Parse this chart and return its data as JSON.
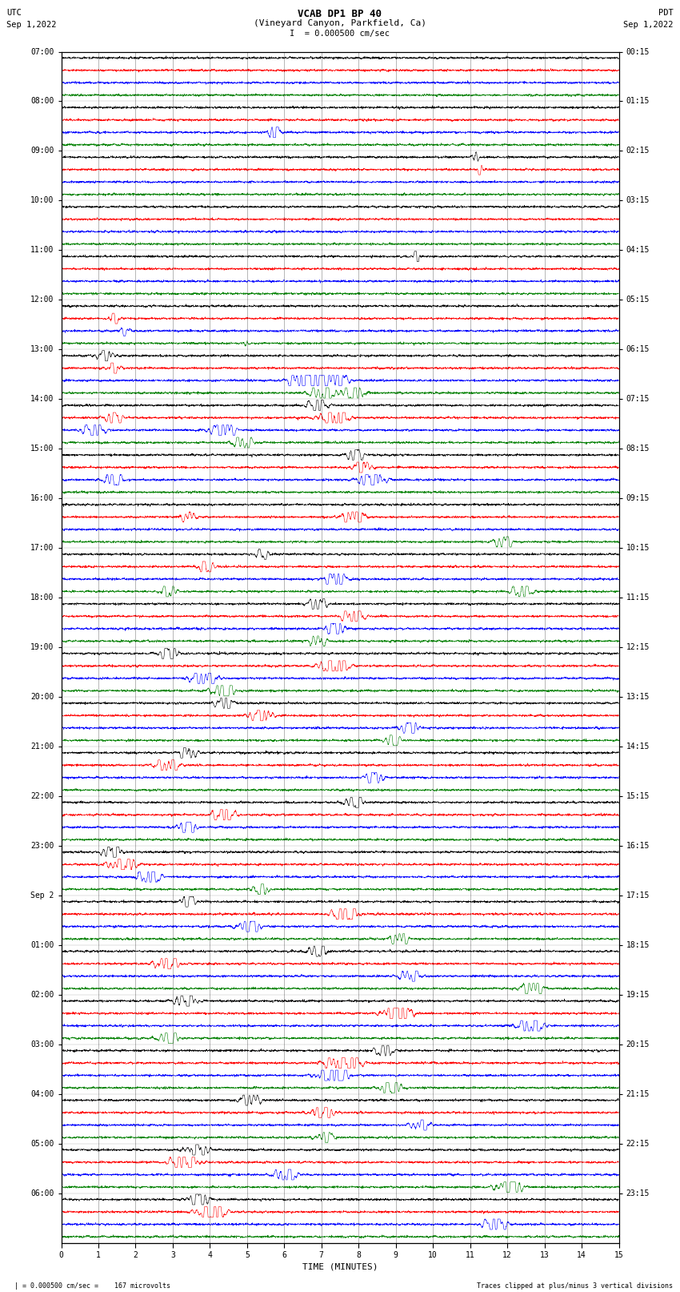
{
  "title_line1": "VCAB DP1 BP 40",
  "title_line2": "(Vineyard Canyon, Parkfield, Ca)",
  "scale_label": "I  = 0.000500 cm/sec",
  "left_label": "UTC",
  "left_date": "Sep 1,2022",
  "right_label": "PDT",
  "right_date": "Sep 1,2022",
  "xlabel": "TIME (MINUTES)",
  "bottom_left": "  | = 0.000500 cm/sec =    167 microvolts",
  "bottom_right": "Traces clipped at plus/minus 3 vertical divisions",
  "utc_times": [
    "07:00",
    "08:00",
    "09:00",
    "10:00",
    "11:00",
    "12:00",
    "13:00",
    "14:00",
    "15:00",
    "16:00",
    "17:00",
    "18:00",
    "19:00",
    "20:00",
    "21:00",
    "22:00",
    "23:00",
    "Sep 2",
    "01:00",
    "02:00",
    "03:00",
    "04:00",
    "05:00",
    "06:00"
  ],
  "pdt_times": [
    "00:15",
    "01:15",
    "02:15",
    "03:15",
    "04:15",
    "05:15",
    "06:15",
    "07:15",
    "08:15",
    "09:15",
    "10:15",
    "11:15",
    "12:15",
    "13:15",
    "14:15",
    "15:15",
    "16:15",
    "17:15",
    "18:15",
    "19:15",
    "20:15",
    "21:15",
    "22:15",
    "23:15"
  ],
  "num_hour_groups": 24,
  "traces_per_group": 4,
  "colors": [
    "black",
    "red",
    "blue",
    "green"
  ],
  "bg_color": "#ffffff",
  "num_minutes": 15,
  "seed": 42,
  "events": [
    [
      1,
      2,
      5.8,
      3.5,
      0.12
    ],
    [
      2,
      0,
      11.2,
      2.0,
      0.08
    ],
    [
      2,
      1,
      11.3,
      1.8,
      0.08
    ],
    [
      4,
      0,
      9.6,
      2.5,
      0.06
    ],
    [
      5,
      1,
      1.5,
      1.5,
      0.15
    ],
    [
      5,
      2,
      1.8,
      1.2,
      0.12
    ],
    [
      5,
      3,
      5.0,
      1.0,
      0.08
    ],
    [
      6,
      0,
      1.3,
      2.0,
      0.2
    ],
    [
      6,
      1,
      1.5,
      1.5,
      0.18
    ],
    [
      6,
      2,
      6.8,
      4.5,
      0.35
    ],
    [
      6,
      2,
      7.5,
      3.0,
      0.3
    ],
    [
      6,
      3,
      7.2,
      2.5,
      0.28
    ],
    [
      6,
      3,
      8.0,
      2.0,
      0.25
    ],
    [
      7,
      0,
      7.0,
      2.5,
      0.2
    ],
    [
      7,
      1,
      1.5,
      2.0,
      0.2
    ],
    [
      7,
      1,
      7.5,
      3.5,
      0.3
    ],
    [
      7,
      2,
      1.0,
      2.0,
      0.25
    ],
    [
      7,
      2,
      4.5,
      2.5,
      0.28
    ],
    [
      7,
      3,
      5.0,
      2.0,
      0.22
    ],
    [
      8,
      0,
      8.0,
      2.0,
      0.18
    ],
    [
      8,
      1,
      8.2,
      2.5,
      0.2
    ],
    [
      8,
      2,
      1.5,
      2.0,
      0.2
    ],
    [
      8,
      2,
      8.5,
      3.0,
      0.28
    ],
    [
      9,
      1,
      3.5,
      1.8,
      0.15
    ],
    [
      9,
      1,
      8.0,
      2.5,
      0.25
    ],
    [
      9,
      3,
      12.0,
      2.0,
      0.2
    ],
    [
      10,
      0,
      5.5,
      1.5,
      0.15
    ],
    [
      10,
      1,
      4.0,
      2.0,
      0.2
    ],
    [
      10,
      2,
      7.5,
      2.5,
      0.22
    ],
    [
      10,
      3,
      3.0,
      1.8,
      0.18
    ],
    [
      10,
      3,
      12.5,
      2.0,
      0.22
    ],
    [
      11,
      0,
      7.0,
      2.0,
      0.2
    ],
    [
      11,
      1,
      8.0,
      2.5,
      0.25
    ],
    [
      11,
      2,
      7.5,
      2.0,
      0.22
    ],
    [
      11,
      3,
      7.0,
      1.8,
      0.18
    ],
    [
      12,
      0,
      3.0,
      2.5,
      0.22
    ],
    [
      12,
      1,
      7.5,
      3.5,
      0.3
    ],
    [
      12,
      2,
      4.0,
      3.0,
      0.28
    ],
    [
      12,
      3,
      4.5,
      2.5,
      0.25
    ],
    [
      13,
      0,
      4.5,
      2.0,
      0.2
    ],
    [
      13,
      1,
      5.5,
      2.5,
      0.25
    ],
    [
      13,
      2,
      9.5,
      2.0,
      0.22
    ],
    [
      13,
      3,
      9.0,
      1.8,
      0.18
    ],
    [
      14,
      0,
      3.5,
      2.0,
      0.2
    ],
    [
      14,
      1,
      3.0,
      2.5,
      0.25
    ],
    [
      14,
      2,
      8.5,
      2.0,
      0.22
    ],
    [
      15,
      0,
      8.0,
      2.0,
      0.2
    ],
    [
      15,
      1,
      4.5,
      2.5,
      0.25
    ],
    [
      15,
      2,
      3.5,
      2.0,
      0.22
    ],
    [
      16,
      0,
      1.5,
      2.5,
      0.22
    ],
    [
      16,
      1,
      1.8,
      3.0,
      0.28
    ],
    [
      16,
      2,
      2.5,
      2.5,
      0.25
    ],
    [
      16,
      3,
      5.5,
      2.0,
      0.2
    ],
    [
      17,
      0,
      3.5,
      1.8,
      0.18
    ],
    [
      17,
      1,
      7.8,
      3.0,
      0.28
    ],
    [
      17,
      2,
      5.2,
      2.5,
      0.25
    ],
    [
      17,
      3,
      9.2,
      2.0,
      0.2
    ],
    [
      18,
      0,
      7.0,
      2.0,
      0.2
    ],
    [
      18,
      1,
      3.0,
      2.5,
      0.25
    ],
    [
      18,
      2,
      9.5,
      2.0,
      0.22
    ],
    [
      18,
      3,
      12.8,
      2.5,
      0.25
    ],
    [
      19,
      0,
      3.5,
      2.5,
      0.25
    ],
    [
      19,
      1,
      9.2,
      3.5,
      0.3
    ],
    [
      19,
      2,
      12.8,
      3.0,
      0.28
    ],
    [
      19,
      3,
      3.0,
      2.0,
      0.22
    ],
    [
      20,
      0,
      8.8,
      2.0,
      0.2
    ],
    [
      20,
      1,
      7.8,
      4.0,
      0.35
    ],
    [
      20,
      2,
      7.5,
      3.5,
      0.32
    ],
    [
      20,
      3,
      9.0,
      2.5,
      0.25
    ],
    [
      21,
      0,
      5.2,
      2.0,
      0.22
    ],
    [
      21,
      1,
      7.2,
      2.5,
      0.25
    ],
    [
      21,
      2,
      9.8,
      2.0,
      0.22
    ],
    [
      21,
      3,
      7.2,
      1.8,
      0.2
    ],
    [
      22,
      0,
      3.8,
      2.5,
      0.25
    ],
    [
      22,
      1,
      3.5,
      3.5,
      0.3
    ],
    [
      22,
      2,
      6.2,
      2.5,
      0.25
    ],
    [
      22,
      3,
      12.2,
      3.0,
      0.28
    ],
    [
      23,
      0,
      3.8,
      2.5,
      0.25
    ],
    [
      23,
      1,
      4.2,
      3.5,
      0.3
    ],
    [
      23,
      2,
      11.8,
      2.5,
      0.25
    ],
    [
      24,
      0,
      3.2,
      2.5,
      0.25
    ],
    [
      24,
      1,
      3.8,
      2.0,
      0.22
    ],
    [
      24,
      2,
      9.2,
      2.5,
      0.25
    ],
    [
      25,
      1,
      4.8,
      3.0,
      0.28
    ],
    [
      25,
      2,
      5.2,
      2.5,
      0.25
    ],
    [
      25,
      3,
      8.8,
      2.0,
      0.22
    ],
    [
      26,
      0,
      4.2,
      2.5,
      0.25
    ],
    [
      26,
      2,
      7.8,
      2.5,
      0.25
    ],
    [
      27,
      0,
      8.8,
      2.5,
      0.25
    ],
    [
      27,
      2,
      6.8,
      2.0,
      0.22
    ],
    [
      28,
      0,
      7.8,
      3.0,
      0.3
    ],
    [
      28,
      1,
      8.0,
      2.5,
      0.25
    ],
    [
      29,
      0,
      3.8,
      1.8,
      0.2
    ],
    [
      29,
      2,
      5.0,
      1.5,
      0.18
    ],
    [
      30,
      1,
      6.5,
      3.5,
      0.25
    ],
    [
      30,
      2,
      7.0,
      2.5,
      0.22
    ],
    [
      31,
      0,
      8.5,
      2.5,
      0.25
    ],
    [
      32,
      3,
      5.2,
      2.0,
      0.22
    ]
  ]
}
